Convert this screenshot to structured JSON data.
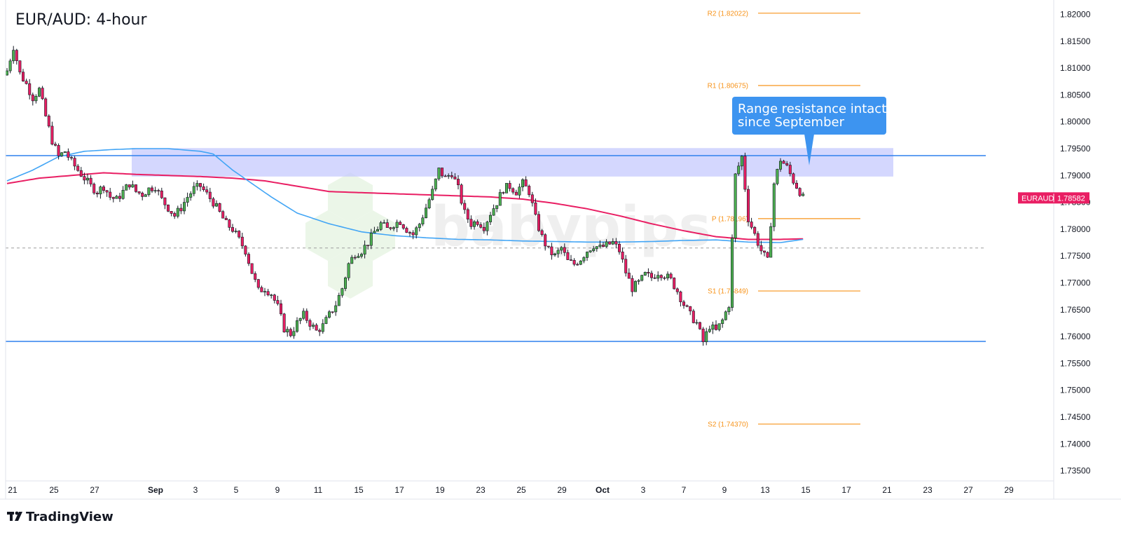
{
  "title": "EUR/AUD: 4-hour",
  "brand": "TradingView",
  "watermark": "babypips",
  "callout": {
    "lines": [
      "Range resistance intact",
      "since September"
    ]
  },
  "price_badge": {
    "symbol": "EURAUD",
    "price": "1.78582"
  },
  "pivots": [
    {
      "label": "R2 (1.82022)",
      "value": 1.82022
    },
    {
      "label": "R1 (1.80675)",
      "value": 1.80675
    },
    {
      "label": "P (1.78196)",
      "value": 1.78196
    },
    {
      "label": "S1 (1.76849)",
      "value": 1.76849
    },
    {
      "label": "S2 (1.74370)",
      "value": 1.7437
    }
  ],
  "colors": {
    "up": "#4caf50",
    "down": "#e91e63",
    "wick": "#131722",
    "sma_pink": "#e91e63",
    "sma_blue": "#42a5f5",
    "range_line": "#2f80ed",
    "resistance_zone": "#c5cafd",
    "pivot": "#f7931a",
    "callout_bg": "#3d94f0",
    "badge_bg": "#e91e63"
  },
  "chart_data": {
    "type": "candlestick",
    "title": "EUR/AUD: 4-hour",
    "ylim": [
      1.731,
      1.8225
    ],
    "y_ticks": [
      "1.82000",
      "1.81500",
      "1.81000",
      "1.80500",
      "1.80000",
      "1.79500",
      "1.79000",
      "1.78500",
      "1.78000",
      "1.77500",
      "1.77000",
      "1.76500",
      "1.76000",
      "1.75500",
      "1.75000",
      "1.74500",
      "1.74000",
      "1.73500"
    ],
    "x_ticks": [
      {
        "label": "21",
        "bold": false
      },
      {
        "label": "25",
        "bold": false
      },
      {
        "label": "27",
        "bold": false
      },
      {
        "label": "Sep",
        "bold": true
      },
      {
        "label": "3",
        "bold": false
      },
      {
        "label": "5",
        "bold": false
      },
      {
        "label": "9",
        "bold": false
      },
      {
        "label": "11",
        "bold": false
      },
      {
        "label": "15",
        "bold": false
      },
      {
        "label": "17",
        "bold": false
      },
      {
        "label": "19",
        "bold": false
      },
      {
        "label": "23",
        "bold": false
      },
      {
        "label": "25",
        "bold": false
      },
      {
        "label": "29",
        "bold": false
      },
      {
        "label": "Oct",
        "bold": true
      },
      {
        "label": "3",
        "bold": false
      },
      {
        "label": "7",
        "bold": false
      },
      {
        "label": "9",
        "bold": false
      },
      {
        "label": "13",
        "bold": false
      },
      {
        "label": "15",
        "bold": false
      },
      {
        "label": "17",
        "bold": false
      },
      {
        "label": "21",
        "bold": false
      },
      {
        "label": "23",
        "bold": false
      },
      {
        "label": "27",
        "bold": false
      },
      {
        "label": "29",
        "bold": false
      }
    ],
    "range_support": 1.7591,
    "range_resistance": 1.7937,
    "resistance_zone": [
      1.7898,
      1.7951
    ],
    "current_price": 1.78582,
    "dashed_level": 1.7765,
    "close_path": [
      [
        0,
        1.8095
      ],
      [
        2,
        1.814
      ],
      [
        4,
        1.809
      ],
      [
        6,
        1.807
      ],
      [
        8,
        1.8045
      ],
      [
        10,
        1.806
      ],
      [
        12,
        1.801
      ],
      [
        14,
        1.7965
      ],
      [
        16,
        1.7935
      ],
      [
        18,
        1.7945
      ],
      [
        20,
        1.7925
      ],
      [
        22,
        1.791
      ],
      [
        24,
        1.7895
      ],
      [
        26,
        1.788
      ],
      [
        28,
        1.787
      ],
      [
        30,
        1.788
      ],
      [
        32,
        1.786
      ],
      [
        34,
        1.7855
      ],
      [
        36,
        1.787
      ],
      [
        38,
        1.7885
      ],
      [
        40,
        1.787
      ],
      [
        42,
        1.7865
      ],
      [
        44,
        1.7875
      ],
      [
        46,
        1.788
      ],
      [
        48,
        1.7855
      ],
      [
        50,
        1.784
      ],
      [
        52,
        1.7825
      ],
      [
        54,
        1.784
      ],
      [
        56,
        1.786
      ],
      [
        58,
        1.7875
      ],
      [
        60,
        1.788
      ],
      [
        62,
        1.7865
      ],
      [
        64,
        1.785
      ],
      [
        66,
        1.783
      ],
      [
        68,
        1.781
      ],
      [
        70,
        1.78
      ],
      [
        72,
        1.778
      ],
      [
        74,
        1.776
      ],
      [
        76,
        1.772
      ],
      [
        78,
        1.7685
      ],
      [
        80,
        1.769
      ],
      [
        82,
        1.768
      ],
      [
        84,
        1.7655
      ],
      [
        86,
        1.7615
      ],
      [
        88,
        1.7605
      ],
      [
        90,
        1.7625
      ],
      [
        92,
        1.764
      ],
      [
        94,
        1.7625
      ],
      [
        96,
        1.761
      ],
      [
        98,
        1.762
      ],
      [
        100,
        1.764
      ],
      [
        102,
        1.766
      ],
      [
        104,
        1.769
      ],
      [
        106,
        1.7735
      ],
      [
        108,
        1.7755
      ],
      [
        110,
        1.776
      ],
      [
        112,
        1.7775
      ],
      [
        114,
        1.7795
      ],
      [
        116,
        1.781
      ],
      [
        118,
        1.78
      ],
      [
        120,
        1.781
      ],
      [
        122,
        1.7815
      ],
      [
        124,
        1.78
      ],
      [
        126,
        1.779
      ],
      [
        128,
        1.781
      ],
      [
        130,
        1.784
      ],
      [
        132,
        1.787
      ],
      [
        134,
        1.791
      ],
      [
        136,
        1.7895
      ],
      [
        138,
        1.7905
      ],
      [
        140,
        1.7875
      ],
      [
        142,
        1.783
      ],
      [
        144,
        1.781
      ],
      [
        146,
        1.7815
      ],
      [
        148,
        1.7805
      ],
      [
        150,
        1.783
      ],
      [
        152,
        1.785
      ],
      [
        154,
        1.7875
      ],
      [
        156,
        1.788
      ],
      [
        158,
        1.787
      ],
      [
        160,
        1.7885
      ],
      [
        162,
        1.787
      ],
      [
        164,
        1.782
      ],
      [
        166,
        1.7785
      ],
      [
        168,
        1.776
      ],
      [
        170,
        1.775
      ],
      [
        172,
        1.7765
      ],
      [
        174,
        1.774
      ],
      [
        176,
        1.7735
      ],
      [
        178,
        1.7745
      ],
      [
        180,
        1.776
      ],
      [
        182,
        1.777
      ],
      [
        184,
        1.7765
      ],
      [
        186,
        1.777
      ],
      [
        188,
        1.7775
      ],
      [
        190,
        1.776
      ],
      [
        192,
        1.772
      ],
      [
        194,
        1.769
      ],
      [
        196,
        1.77
      ],
      [
        198,
        1.7715
      ],
      [
        200,
        1.771
      ],
      [
        202,
        1.772
      ],
      [
        204,
        1.7715
      ],
      [
        206,
        1.7705
      ],
      [
        208,
        1.7685
      ],
      [
        210,
        1.766
      ],
      [
        212,
        1.764
      ],
      [
        214,
        1.7625
      ],
      [
        216,
        1.759
      ],
      [
        218,
        1.762
      ],
      [
        220,
        1.761
      ],
      [
        222,
        1.763
      ],
      [
        224,
        1.766
      ],
      [
        226,
        1.79
      ],
      [
        228,
        1.7935
      ],
      [
        230,
        1.782
      ],
      [
        232,
        1.779
      ],
      [
        234,
        1.776
      ],
      [
        236,
        1.774
      ],
      [
        238,
        1.7885
      ],
      [
        240,
        1.793
      ],
      [
        242,
        1.7915
      ],
      [
        244,
        1.789
      ],
      [
        246,
        1.787
      ],
      [
        247,
        1.7858
      ]
    ],
    "series": [
      {
        "name": "",
        "color": "#e91e63",
        "points": [
          [
            0,
            1.7885
          ],
          [
            10,
            1.7895
          ],
          [
            20,
            1.79
          ],
          [
            30,
            1.7905
          ],
          [
            40,
            1.7902
          ],
          [
            50,
            1.79
          ],
          [
            60,
            1.7898
          ],
          [
            70,
            1.7895
          ],
          [
            80,
            1.789
          ],
          [
            90,
            1.788
          ],
          [
            100,
            1.787
          ],
          [
            110,
            1.7868
          ],
          [
            120,
            1.7866
          ],
          [
            130,
            1.7864
          ],
          [
            140,
            1.7862
          ],
          [
            150,
            1.786
          ],
          [
            160,
            1.7856
          ],
          [
            170,
            1.7848
          ],
          [
            180,
            1.7838
          ],
          [
            190,
            1.7825
          ],
          [
            200,
            1.781
          ],
          [
            210,
            1.7797
          ],
          [
            220,
            1.7786
          ],
          [
            230,
            1.7781
          ],
          [
            240,
            1.7781
          ],
          [
            247,
            1.7782
          ]
        ]
      },
      {
        "name": "",
        "color": "#42a5f5",
        "points": [
          [
            0,
            1.789
          ],
          [
            8,
            1.791
          ],
          [
            16,
            1.7935
          ],
          [
            24,
            1.7945
          ],
          [
            32,
            1.7948
          ],
          [
            40,
            1.795
          ],
          [
            50,
            1.795
          ],
          [
            60,
            1.7945
          ],
          [
            64,
            1.794
          ],
          [
            70,
            1.791
          ],
          [
            76,
            1.7885
          ],
          [
            82,
            1.786
          ],
          [
            90,
            1.783
          ],
          [
            100,
            1.781
          ],
          [
            110,
            1.7795
          ],
          [
            120,
            1.7788
          ],
          [
            130,
            1.7784
          ],
          [
            140,
            1.7781
          ],
          [
            150,
            1.778
          ],
          [
            160,
            1.7778
          ],
          [
            170,
            1.7777
          ],
          [
            180,
            1.7776
          ],
          [
            190,
            1.7776
          ],
          [
            200,
            1.7777
          ],
          [
            210,
            1.7779
          ],
          [
            220,
            1.778
          ],
          [
            230,
            1.7776
          ],
          [
            240,
            1.7775
          ],
          [
            247,
            1.7781
          ]
        ]
      }
    ]
  }
}
